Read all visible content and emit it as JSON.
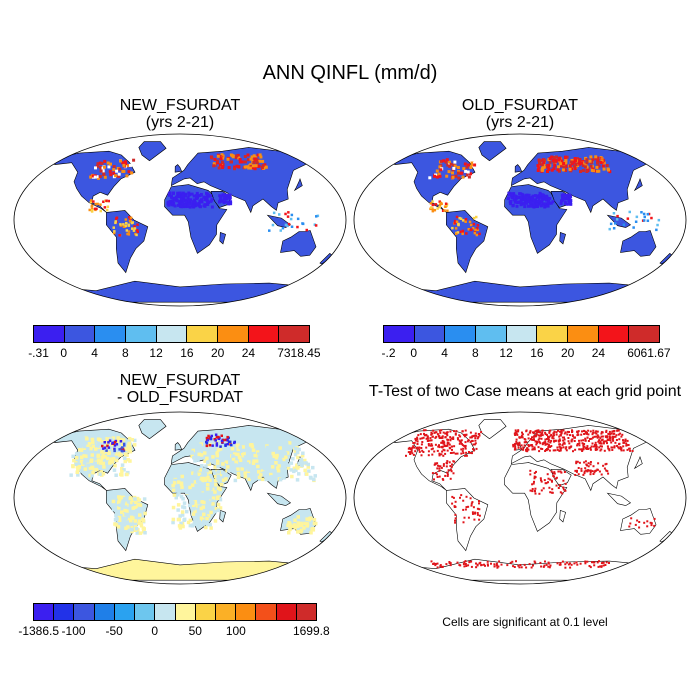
{
  "figure": {
    "title": "ANN QINFL (mm/d)",
    "note": "Cells are significant at 0.1 level"
  },
  "panels": [
    {
      "title_line1": "NEW_FSURDAT",
      "title_line2": "(yrs 2-21)",
      "style": "field"
    },
    {
      "title_line1": "OLD_FSURDAT",
      "title_line2": "(yrs 2-21)",
      "style": "field"
    },
    {
      "title_line1": "NEW_FSURDAT",
      "title_line2": "- OLD_FSURDAT",
      "style": "diff"
    },
    {
      "title_line1": "T-Test of two Case means at each grid point",
      "title_line2": "",
      "style": "ttest"
    }
  ],
  "colorbars": [
    {
      "colors": [
        "#3b1ff0",
        "#3c56e0",
        "#2a8ef0",
        "#5fbef0",
        "#c7e6f0",
        "#fad347",
        "#fb8e12",
        "#f3141a",
        "#cf2b2a"
      ],
      "labels": [
        "-.31",
        "0",
        "4",
        "8",
        "12",
        "16",
        "20",
        "24",
        "7318.45"
      ]
    },
    {
      "colors": [
        "#3b1ff0",
        "#3c56e0",
        "#2a8ef0",
        "#5fbef0",
        "#c7e6f0",
        "#fad347",
        "#fb8e12",
        "#f3141a",
        "#cf2b2a"
      ],
      "labels": [
        "-.2",
        "0",
        "4",
        "8",
        "12",
        "16",
        "20",
        "24",
        "6061.67"
      ]
    },
    {
      "colors": [
        "#3b1ff0",
        "#2232e8",
        "#3c56e0",
        "#1f7fe8",
        "#2aa2f0",
        "#6dc6ee",
        "#c7e6f0",
        "#fff59c",
        "#fad347",
        "#fbb026",
        "#fb8e12",
        "#f3501a",
        "#e0141a",
        "#cf2b2a"
      ],
      "labels": [
        "-1386.5",
        "-100",
        "-50",
        "0",
        "50",
        "100",
        "1699.8"
      ],
      "label_at": [
        0,
        2,
        4,
        6,
        8,
        10,
        14
      ]
    }
  ],
  "colors": {
    "land_field": "#3c56e0",
    "desert_field": "#3b1ff0",
    "diff_land": "#c7e6f0",
    "diff_yellow": "#fff59c",
    "signif": "#e0141a"
  }
}
